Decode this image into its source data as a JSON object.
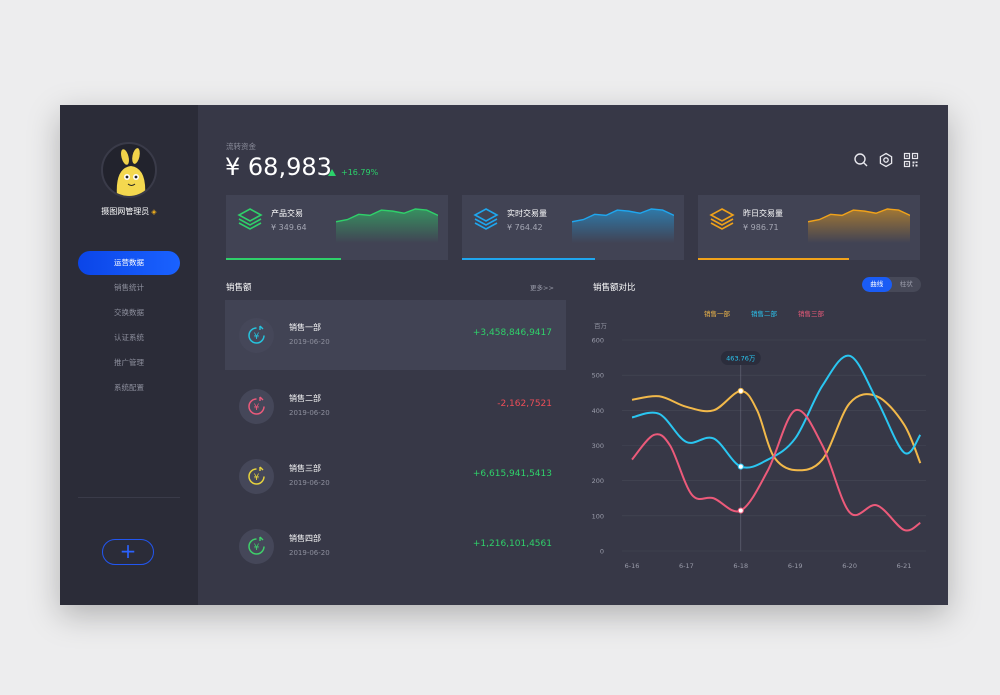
{
  "user": {
    "name": "摄图网管理员",
    "vip_icon": "diamond-icon"
  },
  "nav": [
    "运营数据",
    "销售统计",
    "交换数据",
    "认证系统",
    "推广管理",
    "系统配置"
  ],
  "add_button": "+",
  "flow": {
    "label": "流转资金",
    "amount": "¥ 68,983",
    "change": "+16.79%"
  },
  "header_icons": [
    "search-icon",
    "settings-icon",
    "qrcode-icon"
  ],
  "stats": [
    {
      "title": "产品交易",
      "value": "¥ 349.64",
      "color": "#2fd06a",
      "progress": 0.52,
      "values": [
        20,
        22,
        27,
        26,
        31,
        30,
        28,
        32,
        31,
        26
      ]
    },
    {
      "title": "实时交易量",
      "value": "¥ 764.42",
      "color": "#1fa6ee",
      "progress": 0.6,
      "values": [
        20,
        22,
        27,
        26,
        31,
        30,
        28,
        32,
        31,
        26
      ]
    },
    {
      "title": "昨日交易量",
      "value": "¥ 986.71",
      "color": "#f0a21a",
      "progress": 0.68,
      "values": [
        20,
        22,
        27,
        26,
        31,
        30,
        28,
        32,
        31,
        26
      ]
    }
  ],
  "sales": {
    "title": "销售额",
    "more": "更多>>",
    "rows": [
      {
        "name": "销售一部",
        "date": "2019-06-20",
        "value": "+3,458,846,9417",
        "color": "#2fd06a",
        "icon_color": "#26c3dd"
      },
      {
        "name": "销售二部",
        "date": "2019-06-20",
        "value": "-2,162,7521",
        "color": "#ec4d58",
        "icon_color": "#ea5a7b"
      },
      {
        "name": "销售三部",
        "date": "2019-06-20",
        "value": "+6,615,941,5413",
        "color": "#2fd06a",
        "icon_color": "#e6d23e"
      },
      {
        "name": "销售四部",
        "date": "2019-06-20",
        "value": "+1,216,101,4561",
        "color": "#2fd06a",
        "icon_color": "#3fcf6a"
      }
    ]
  },
  "compare": {
    "title": "销售额对比",
    "toggle": [
      "曲线",
      "柱状"
    ]
  },
  "chart_data": {
    "type": "line",
    "title": "销售额对比",
    "ylabel": "百万",
    "ylim": [
      0,
      600
    ],
    "yticks": [
      0,
      100,
      200,
      300,
      400,
      500,
      600
    ],
    "x": [
      "6-16",
      "6-17",
      "6-18",
      "6-19",
      "6-20",
      "6-21"
    ],
    "x_numeric": [
      6.16,
      6.17,
      6.18,
      6.19,
      6.2,
      6.21
    ],
    "tooltip": {
      "label": "463.76万",
      "x": 6.18
    },
    "series": [
      {
        "name": "销售一部",
        "color": "#f2b94a",
        "points": [
          [
            6.16,
            430
          ],
          [
            6.165,
            440
          ],
          [
            6.17,
            410
          ],
          [
            6.175,
            400
          ],
          [
            6.18,
            455
          ],
          [
            6.183,
            400
          ],
          [
            6.186,
            270
          ],
          [
            6.19,
            230
          ],
          [
            6.195,
            260
          ],
          [
            6.2,
            420
          ],
          [
            6.205,
            440
          ],
          [
            6.21,
            360
          ],
          [
            6.213,
            250
          ]
        ]
      },
      {
        "name": "销售二部",
        "color": "#2ac6f1",
        "points": [
          [
            6.16,
            380
          ],
          [
            6.165,
            390
          ],
          [
            6.17,
            310
          ],
          [
            6.175,
            320
          ],
          [
            6.18,
            240
          ],
          [
            6.185,
            260
          ],
          [
            6.19,
            320
          ],
          [
            6.195,
            470
          ],
          [
            6.2,
            555
          ],
          [
            6.205,
            430
          ],
          [
            6.21,
            280
          ],
          [
            6.213,
            330
          ]
        ]
      },
      {
        "name": "销售三部",
        "color": "#ec5a7a",
        "points": [
          [
            6.16,
            260
          ],
          [
            6.164,
            330
          ],
          [
            6.167,
            300
          ],
          [
            6.171,
            160
          ],
          [
            6.175,
            150
          ],
          [
            6.18,
            115
          ],
          [
            6.185,
            230
          ],
          [
            6.19,
            400
          ],
          [
            6.195,
            300
          ],
          [
            6.2,
            110
          ],
          [
            6.205,
            130
          ],
          [
            6.21,
            60
          ],
          [
            6.213,
            80
          ]
        ]
      }
    ]
  }
}
